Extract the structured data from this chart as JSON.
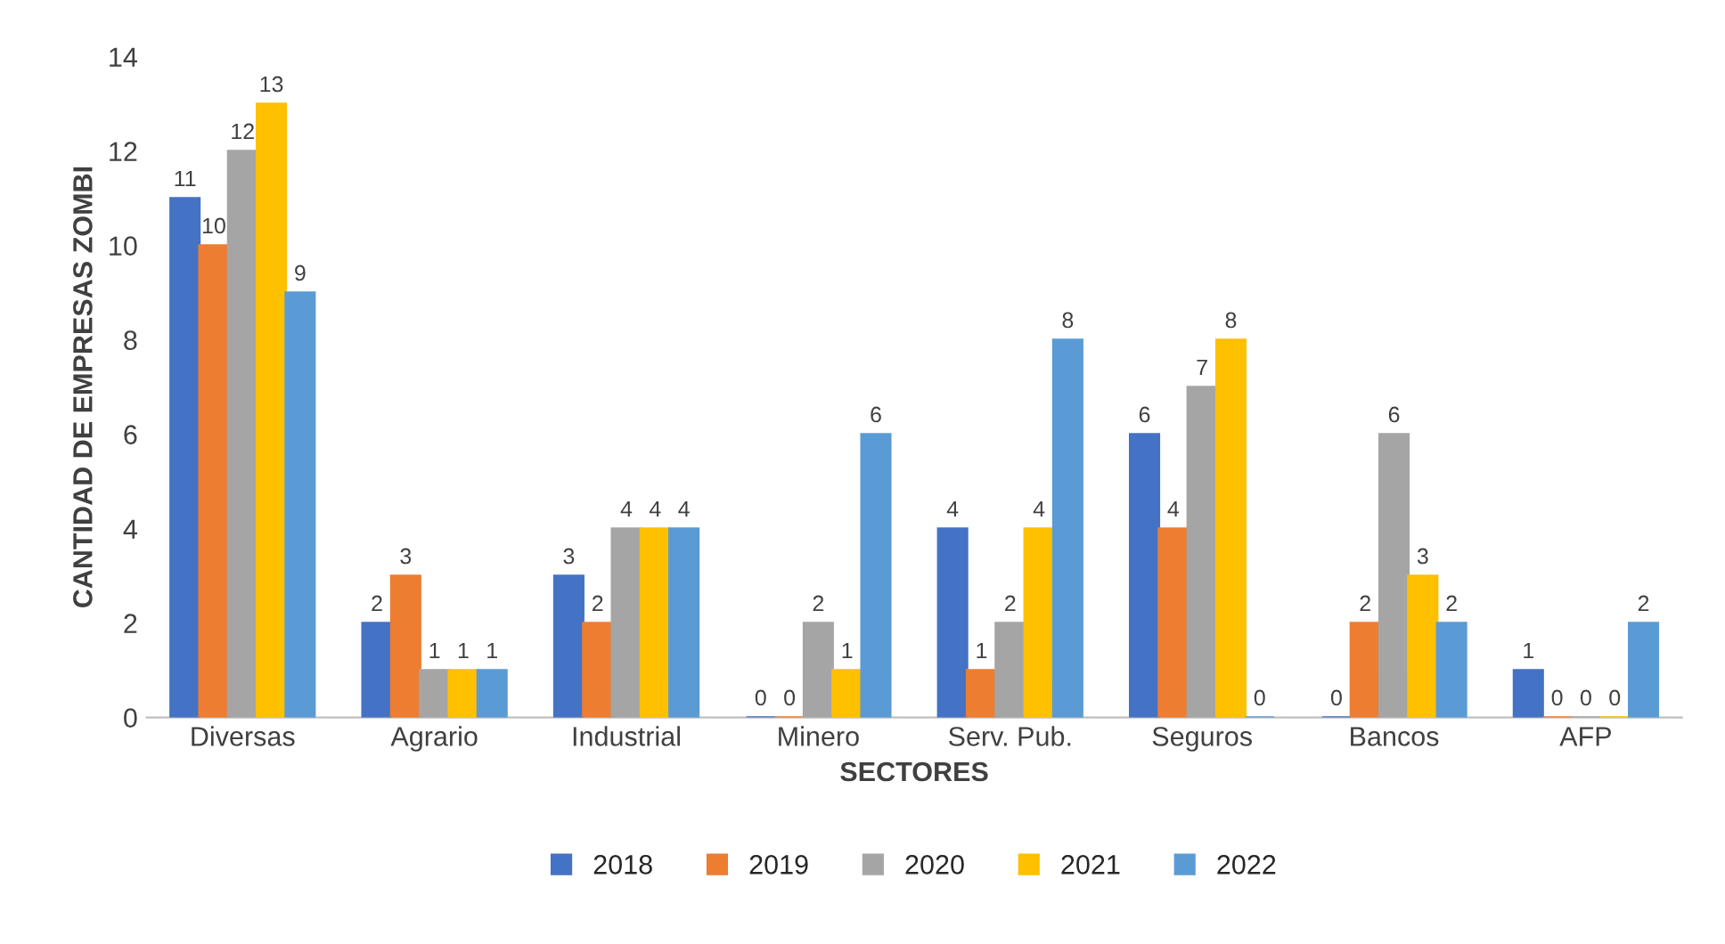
{
  "chart_data": {
    "type": "bar",
    "xlabel": "SECTORES",
    "ylabel": "CANTIDAD DE EMPRESAS ZOMBI",
    "categories": [
      "Diversas",
      "Agrario",
      "Industrial",
      "Minero",
      "Serv. Pub.",
      "Seguros",
      "Bancos",
      "AFP"
    ],
    "series": [
      {
        "name": "2018",
        "color": "#4472c4",
        "values": [
          11,
          2,
          3,
          0,
          4,
          6,
          0,
          1
        ]
      },
      {
        "name": "2019",
        "color": "#ed7d31",
        "values": [
          10,
          3,
          2,
          0,
          1,
          4,
          2,
          0
        ]
      },
      {
        "name": "2020",
        "color": "#a5a5a5",
        "values": [
          12,
          1,
          4,
          2,
          2,
          7,
          6,
          0
        ]
      },
      {
        "name": "2021",
        "color": "#ffc000",
        "values": [
          13,
          1,
          4,
          1,
          4,
          8,
          3,
          0
        ]
      },
      {
        "name": "2022",
        "color": "#5b9bd5",
        "values": [
          9,
          1,
          4,
          6,
          8,
          0,
          2,
          2
        ]
      }
    ],
    "ylim": [
      0,
      14
    ],
    "yticks": [
      0,
      2,
      4,
      6,
      8,
      10,
      12,
      14
    ],
    "grid": false,
    "legend": "bottom",
    "data_labels": true
  }
}
